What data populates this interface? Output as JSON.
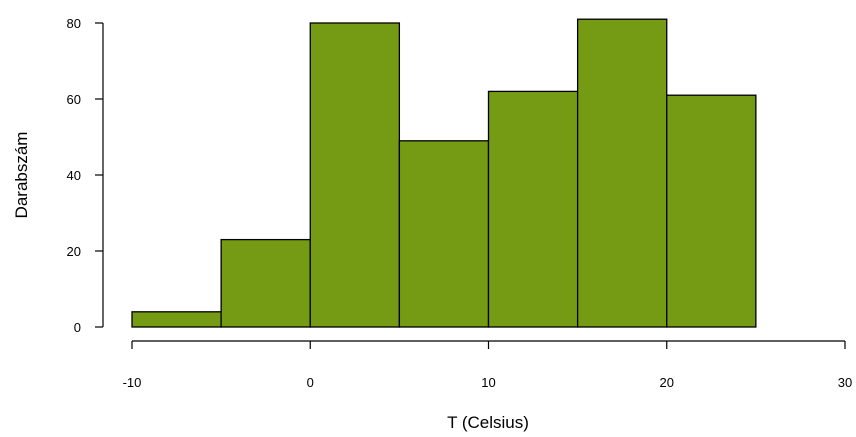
{
  "chart_data": {
    "type": "bar",
    "title": "",
    "xlabel": "T (Celsius)",
    "ylabel": "Darabszám",
    "bins": [
      {
        "from": -10,
        "to": -5,
        "count": 4
      },
      {
        "from": -5,
        "to": 0,
        "count": 23
      },
      {
        "from": 0,
        "to": 5,
        "count": 80
      },
      {
        "from": 5,
        "to": 10,
        "count": 49
      },
      {
        "from": 10,
        "to": 15,
        "count": 62
      },
      {
        "from": 15,
        "to": 20,
        "count": 81
      },
      {
        "from": 20,
        "to": 25,
        "count": 61
      }
    ],
    "xlim": [
      -10,
      30
    ],
    "ylim": [
      0,
      80
    ],
    "x_ticks": [
      -10,
      0,
      10,
      20,
      30
    ],
    "x_tick_labels": [
      "-10",
      "0",
      "10",
      "20",
      "30"
    ],
    "y_ticks": [
      0,
      20,
      40,
      60,
      80
    ],
    "y_tick_labels": [
      "0",
      "20",
      "40",
      "60",
      "80"
    ],
    "bar_color": "#759b14",
    "edge_color": "#000000",
    "grid": false,
    "legend": "none"
  }
}
